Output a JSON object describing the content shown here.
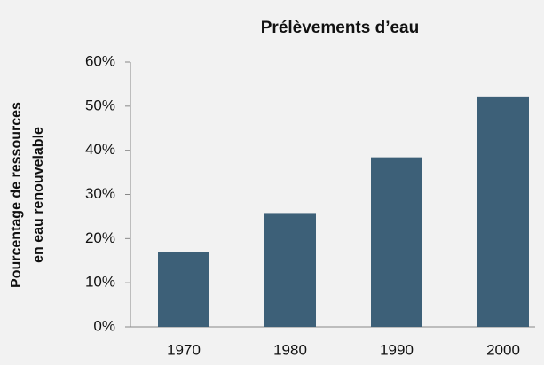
{
  "chart_data": {
    "type": "bar",
    "title": "Prélèvements d’eau",
    "ylabel": [
      "Pourcentage de ressources",
      "en eau renouvelable"
    ],
    "categories": [
      "1970",
      "1980",
      "1990",
      "2000"
    ],
    "values": [
      17,
      25.8,
      38.4,
      52.2
    ],
    "color": "#3d6078",
    "ylim": [
      0,
      60
    ],
    "yticks": [
      {
        "value": 0,
        "label": "0%"
      },
      {
        "value": 10,
        "label": "10%"
      },
      {
        "value": 20,
        "label": "20%"
      },
      {
        "value": 30,
        "label": "30%"
      },
      {
        "value": 40,
        "label": "40%"
      },
      {
        "value": 50,
        "label": "50%"
      },
      {
        "value": 60,
        "label": "60%"
      }
    ],
    "grid": false
  }
}
